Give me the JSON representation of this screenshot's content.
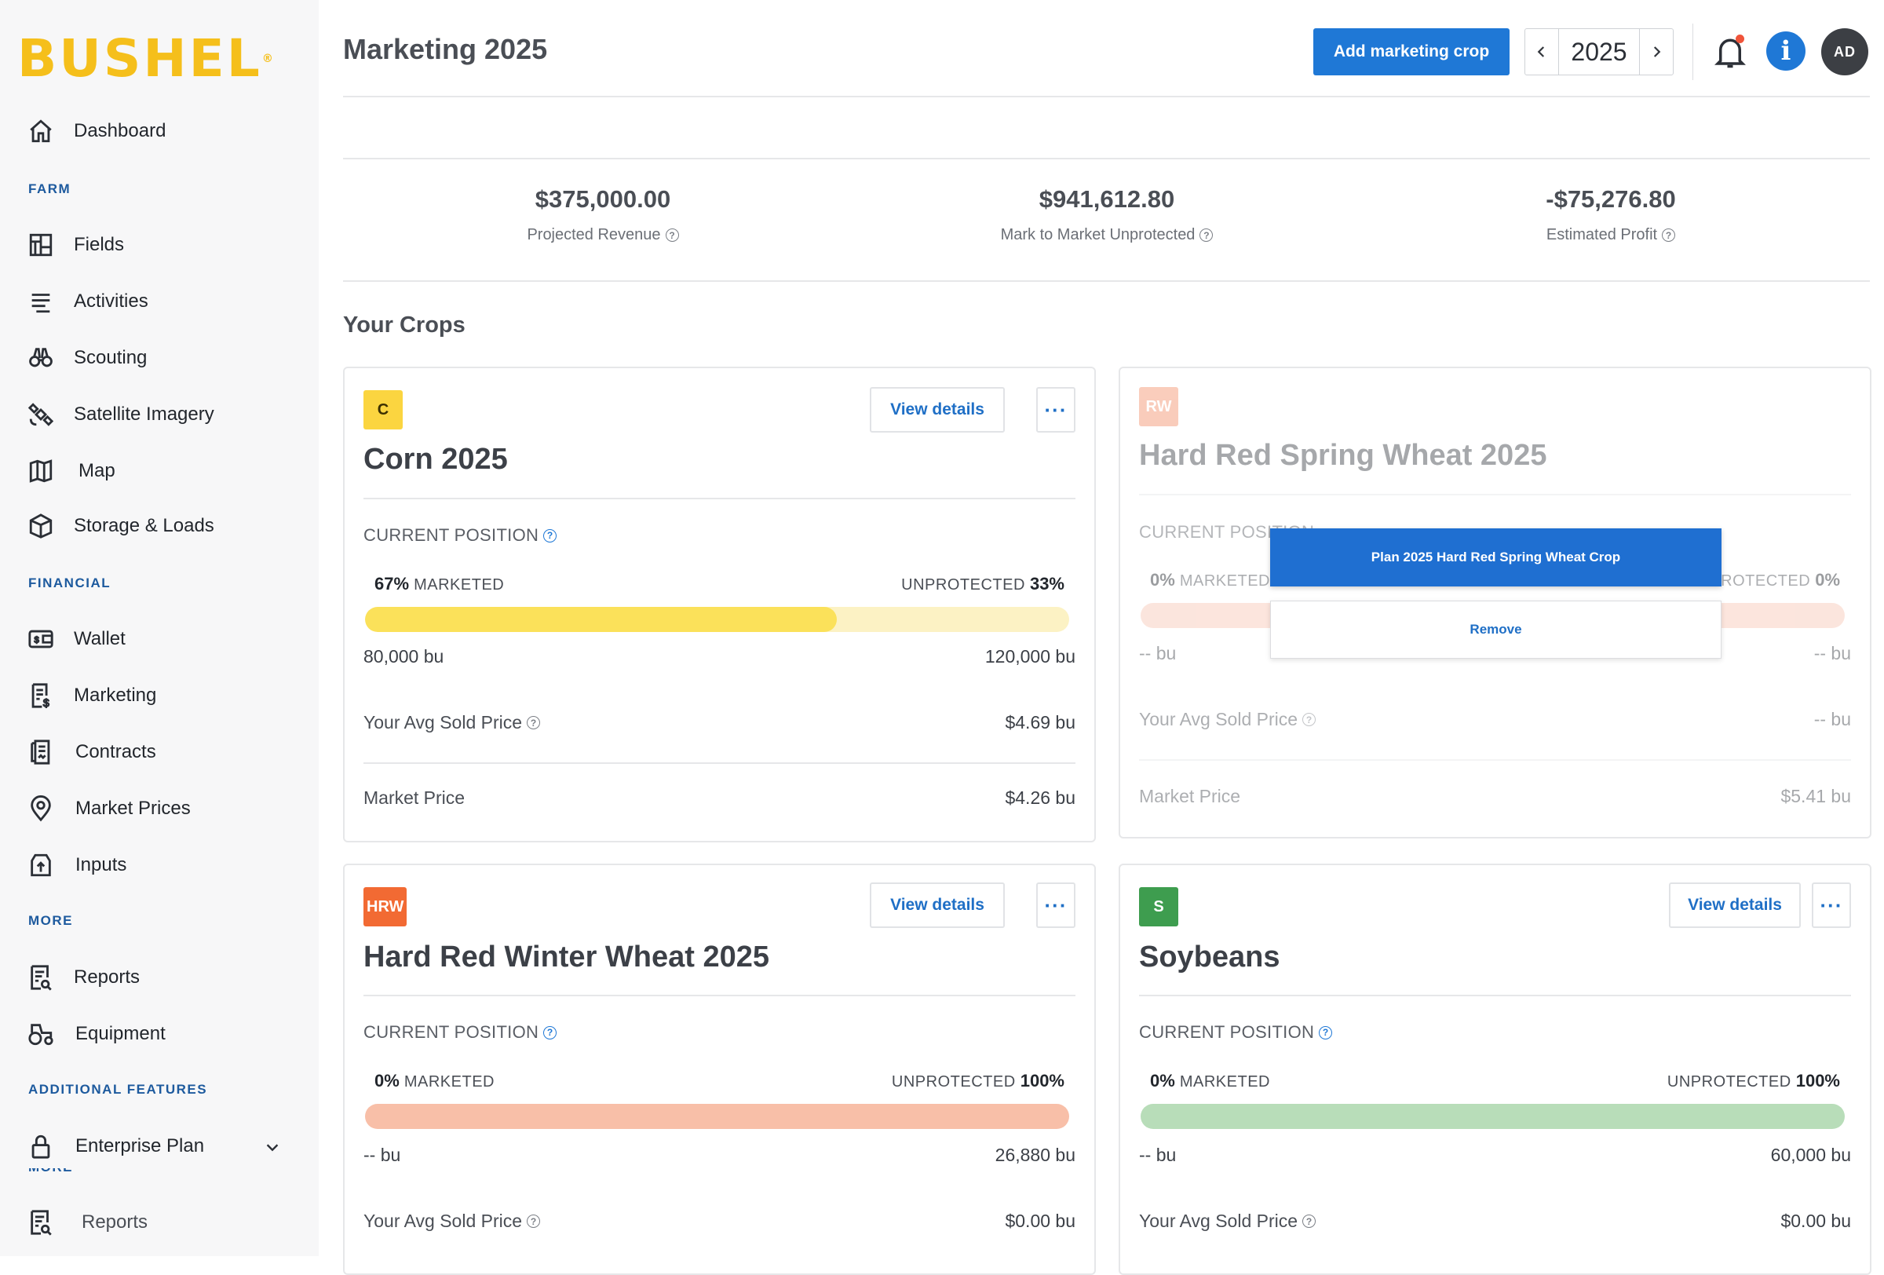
{
  "brand": {
    "name": "BUSHEL",
    "mark": "®"
  },
  "sidebar": {
    "top": [
      {
        "label": "Dashboard",
        "icon": "home-icon"
      }
    ],
    "sections": [
      {
        "label": "FARM",
        "items": [
          {
            "label": "Fields",
            "icon": "fields-icon"
          },
          {
            "label": "Activities",
            "icon": "activities-icon"
          },
          {
            "label": "Scouting",
            "icon": "binoculars-icon"
          },
          {
            "label": "Satellite Imagery",
            "icon": "satellite-icon"
          },
          {
            "label": "Map",
            "icon": "map-icon"
          },
          {
            "label": "Storage & Loads",
            "icon": "storage-icon"
          }
        ]
      },
      {
        "label": "FINANCIAL",
        "items": [
          {
            "label": "Wallet",
            "icon": "wallet-icon"
          },
          {
            "label": "Marketing",
            "icon": "marketing-icon"
          },
          {
            "label": "Contracts",
            "icon": "contracts-icon"
          },
          {
            "label": "Market Prices",
            "icon": "market-prices-icon"
          },
          {
            "label": "Inputs",
            "icon": "inputs-icon"
          }
        ]
      },
      {
        "label": "MORE",
        "items": [
          {
            "label": "Reports",
            "icon": "reports-icon"
          },
          {
            "label": "Equipment",
            "icon": "equipment-icon"
          }
        ]
      },
      {
        "label": "ADDITIONAL FEATURES",
        "items": [
          {
            "label": "Enterprise Plan",
            "icon": "lock-icon"
          }
        ]
      }
    ],
    "overflow": {
      "label": "MORE",
      "item": "Reports"
    }
  },
  "header": {
    "title": "Marketing 2025",
    "add_button": "Add marketing crop",
    "year": "2025",
    "avatar_initials": "AD",
    "info_glyph": "i"
  },
  "summary": [
    {
      "value": "$375,000.00",
      "label": "Projected Revenue"
    },
    {
      "value": "$941,612.80",
      "label": "Mark to Market Unprotected"
    },
    {
      "value": "-$75,276.80",
      "label": "Estimated Profit"
    }
  ],
  "crops_title": "Your Crops",
  "common": {
    "view_details": "View details",
    "more": "···",
    "current_position": "CURRENT POSITION",
    "marketed": "MARKETED",
    "unprotected": "UNPROTECTED",
    "avg_sold_price": "Your Avg Sold Price",
    "market_price": "Market Price"
  },
  "crops": [
    {
      "badge": "C",
      "name": "Corn 2025",
      "marketed_pct": "67%",
      "unprotected_pct": "33%",
      "marketed_fraction": 0.67,
      "marketed_bu": "80,000 bu",
      "total_bu": "120,000 bu",
      "avg_sold": "$4.69 bu",
      "market_price": "$4.26 bu",
      "colors": {
        "badge": "#fbd540",
        "badge_text": "#3c3000",
        "fill": "#fbe15a",
        "track": "#fcf2c4"
      }
    },
    {
      "badge": "RW",
      "name": "Hard Red Spring Wheat 2025",
      "marketed_pct": "0%",
      "unprotected_pct": "0%",
      "marketed_fraction": 0,
      "marketed_bu": "-- bu",
      "total_bu": "-- bu",
      "avg_sold": "-- bu",
      "market_price": "$5.41 bu",
      "colors": {
        "badge": "#f3906b",
        "badge_text": "#ffffff",
        "fill": "#f7b7a0",
        "track": "#f8c6b4"
      }
    },
    {
      "badge": "HRW",
      "name": "Hard Red Winter Wheat 2025",
      "marketed_pct": "0%",
      "unprotected_pct": "100%",
      "marketed_fraction": 0,
      "marketed_bu": "-- bu",
      "total_bu": "26,880 bu",
      "avg_sold": "$0.00 bu",
      "colors": {
        "badge": "#f26a33",
        "badge_text": "#ffffff",
        "fill": "#f8bfa8",
        "track": "#f8bfa8"
      }
    },
    {
      "badge": "S",
      "name": "Soybeans",
      "marketed_pct": "0%",
      "unprotected_pct": "100%",
      "marketed_fraction": 0,
      "marketed_bu": "-- bu",
      "total_bu": "60,000 bu",
      "avg_sold": "$0.00 bu",
      "colors": {
        "badge": "#3e9d4f",
        "badge_text": "#ffffff",
        "fill": "#b8ddb9",
        "track": "#b8ddb9"
      }
    }
  ],
  "popup": {
    "plan": "Plan 2025 Hard Red Spring Wheat Crop",
    "remove": "Remove"
  }
}
